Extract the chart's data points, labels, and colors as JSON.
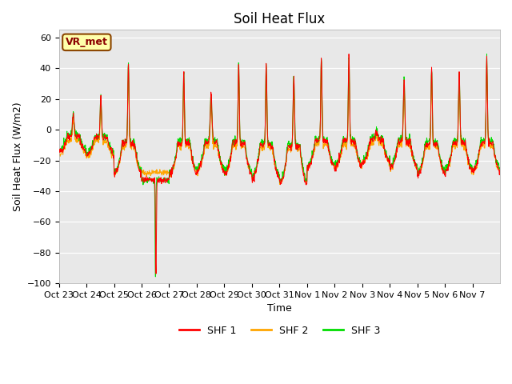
{
  "title": "Soil Heat Flux",
  "ylabel": "Soil Heat Flux (W/m2)",
  "xlabel": "Time",
  "ylim": [
    -100,
    65
  ],
  "yticks": [
    -100,
    -80,
    -60,
    -40,
    -20,
    0,
    20,
    40,
    60
  ],
  "colors": {
    "SHF 1": "#ff0000",
    "SHF 2": "#ffa500",
    "SHF 3": "#00dd00"
  },
  "legend_labels": [
    "SHF 1",
    "SHF 2",
    "SHF 3"
  ],
  "annotation_text": "VR_met",
  "bg_color": "#e8e8e8",
  "xtick_labels": [
    "Oct 23",
    "Oct 24",
    "Oct 25",
    "Oct 26",
    "Oct 27",
    "Oct 28",
    "Oct 29",
    "Oct 30",
    "Oct 31",
    "Nov 1",
    "Nov 2",
    "Nov 3",
    "Nov 4",
    "Nov 5",
    "Nov 6",
    "Nov 7"
  ],
  "n_days": 16,
  "title_fontsize": 12,
  "label_fontsize": 9,
  "tick_fontsize": 8
}
